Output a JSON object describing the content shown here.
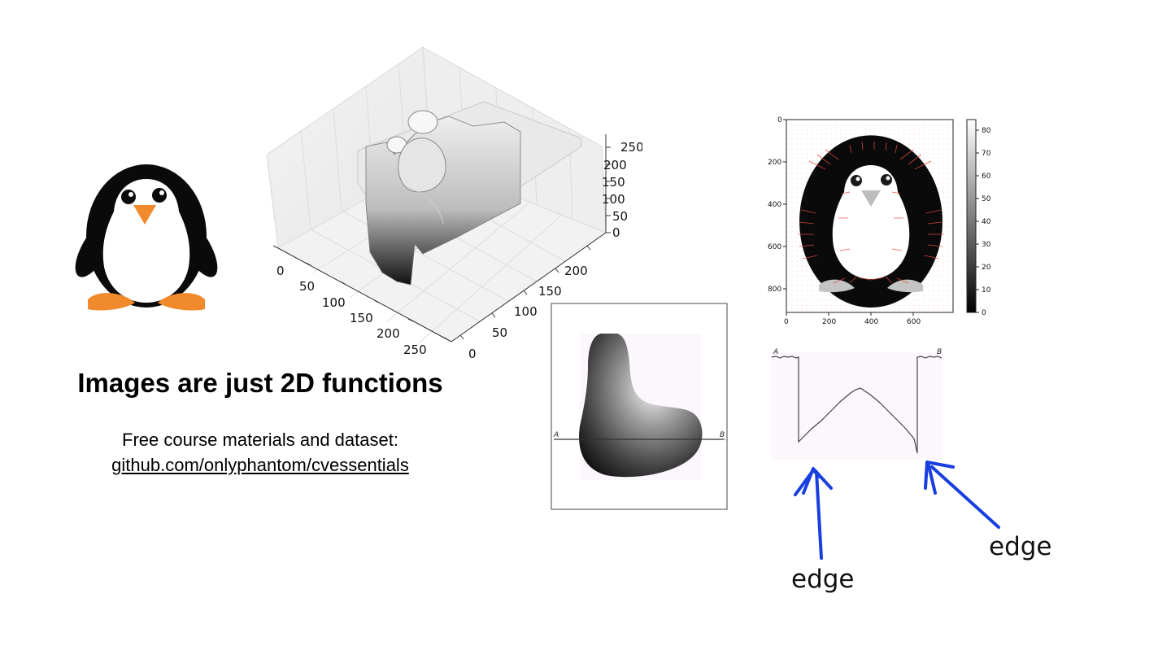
{
  "slide": {
    "title": "Images are just 2D functions",
    "course_line": "Free course materials and dataset:",
    "course_link": "github.com/onlyphantom/cvessentials"
  },
  "surface_plot": {
    "x_ticks": [
      "0",
      "50",
      "100",
      "150",
      "200",
      "250"
    ],
    "y_ticks": [
      "0",
      "50",
      "100",
      "150",
      "200"
    ],
    "z_ticks": [
      "0",
      "50",
      "100",
      "150",
      "200",
      "250"
    ]
  },
  "gradient_plot": {
    "x_ticks": [
      "0",
      "200",
      "400",
      "600"
    ],
    "y_ticks": [
      "0",
      "200",
      "400",
      "600",
      "800"
    ],
    "colorbar_ticks": [
      "0",
      "10",
      "20",
      "30",
      "40",
      "50",
      "60",
      "70",
      "80"
    ]
  },
  "blob_figure": {
    "point_a": "A",
    "point_b": "B"
  },
  "profile_figure": {
    "point_a": "A",
    "point_b": "B"
  },
  "annotations": {
    "edge_left": "edge",
    "edge_right": "edge",
    "arrow_color": "#1a3fe0"
  }
}
